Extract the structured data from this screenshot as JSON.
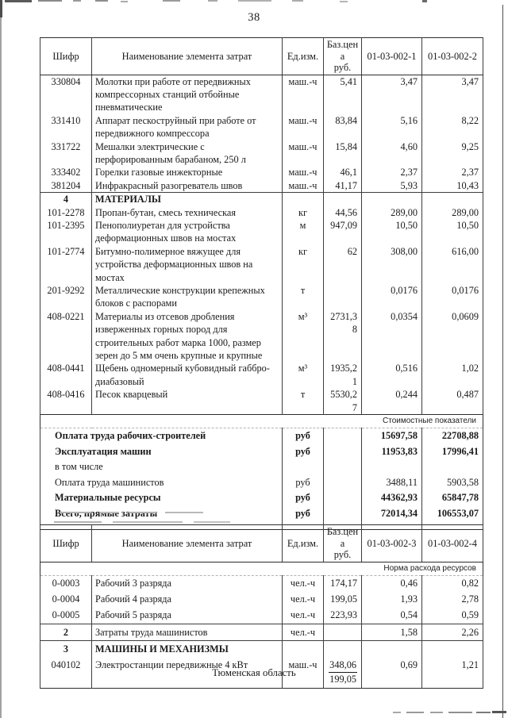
{
  "page": {
    "number": "38",
    "footer": "Тюменская область"
  },
  "labels": {
    "cost": "Стоимостные показатели",
    "norm": "Норма расхода ресурсов"
  },
  "table1": {
    "headers": {
      "code": "Шифр",
      "name": "Наименование элемента затрат",
      "unit": "Ед.изм.",
      "base_line1": "Баз.цена",
      "base_line2": "руб.",
      "col1": "01-03-002-1",
      "col2": "01-03-002-2"
    },
    "rows": [
      {
        "code": "330804",
        "name": "Молотки при работе от передвижных компрессорных станций отбойные пневматические",
        "unit": "маш.-ч",
        "base": "5,41",
        "v1": "3,47",
        "v2": "3,47"
      },
      {
        "code": "331410",
        "name": "Аппарат пескоструйный при работе от передвижного компрессора",
        "unit": "маш.-ч",
        "base": "83,84",
        "v1": "5,16",
        "v2": "8,22"
      },
      {
        "code": "331722",
        "name": "Мешалки электрические с перфорированным барабаном, 250 л",
        "unit": "маш.-ч",
        "base": "15,84",
        "v1": "4,60",
        "v2": "9,25"
      },
      {
        "code": "333402",
        "name": "Горелки газовые инжекторные",
        "unit": "маш.-ч",
        "base": "46,1",
        "v1": "2,37",
        "v2": "2,37"
      },
      {
        "code": "381204",
        "name": "Инфракрасный разогреватель швов",
        "unit": "маш.-ч",
        "base": "41,17",
        "v1": "5,93",
        "v2": "10,43"
      },
      {
        "code": "4",
        "name": "МАТЕРИАЛЫ",
        "unit": "",
        "base": "",
        "v1": "",
        "v2": "",
        "section": true
      },
      {
        "code": "101-2278",
        "name": "Пропан-бутан, смесь техническая",
        "unit": "кг",
        "base": "44,56",
        "v1": "289,00",
        "v2": "289,00"
      },
      {
        "code": "101-2395",
        "name": "Пенополиуретан для устройства деформационных швов на мостах",
        "unit": "м",
        "base": "947,09",
        "v1": "10,50",
        "v2": "10,50"
      },
      {
        "code": "101-2774",
        "name": "Битумно-полимерное вяжущее для устройства деформационных швов на мостах",
        "unit": "кг",
        "base": "62",
        "v1": "308,00",
        "v2": "616,00"
      },
      {
        "code": "201-9292",
        "name": "Металлические конструкции крепежных блоков с распорами",
        "unit": "т",
        "base": "",
        "v1": "0,0176",
        "v2": "0,0176"
      },
      {
        "code": "408-0221",
        "name": "Материалы из отсевов дробления изверженных горных пород для строительных работ марка 1000, размер зерен до 5 мм очень крупные и крупные",
        "unit": "м³",
        "base": "2731,38",
        "v1": "0,0354",
        "v2": "0,0609"
      },
      {
        "code": "408-0441",
        "name": "Щебень одномерный кубовидный габбро-диабазовый",
        "unit": "м³",
        "base": "1935,21",
        "v1": "0,516",
        "v2": "1,02"
      },
      {
        "code": "408-0416",
        "name": "Песок кварцевый",
        "unit": "т",
        "base": "5530,27",
        "v1": "0,244",
        "v2": "0,487"
      }
    ],
    "cost_rows": [
      {
        "name": "Оплата труда рабочих-строителей",
        "unit": "руб",
        "v1": "15697,58",
        "v2": "22708,88",
        "bold": true
      },
      {
        "name": "Эксплуатация машин",
        "unit": "руб",
        "v1": "11953,83",
        "v2": "17996,41",
        "bold": true
      },
      {
        "name": "в том числе",
        "unit": "",
        "v1": "",
        "v2": "",
        "bold": false
      },
      {
        "name": "Оплата труда машинистов",
        "unit": "руб",
        "v1": "3488,11",
        "v2": "5903,58",
        "bold": false
      },
      {
        "name": "Материальные ресурсы",
        "unit": "руб",
        "v1": "44362,93",
        "v2": "65847,78",
        "bold": true
      },
      {
        "name": "Всего, прямые затраты",
        "unit": "руб",
        "v1": "72014,34",
        "v2": "106553,07",
        "bold": true
      }
    ]
  },
  "table2": {
    "headers": {
      "code": "Шифр",
      "name": "Наименование элемента затрат",
      "unit": "Ед.изм.",
      "base_line1": "Баз.цена",
      "base_line2": "руб.",
      "col1": "01-03-002-3",
      "col2": "01-03-002-4"
    },
    "rows": [
      {
        "code": "0-0003",
        "name": "Рабочий 3 разряда",
        "unit": "чел.-ч",
        "base": "174,17",
        "v1": "0,46",
        "v2": "0,82"
      },
      {
        "code": "0-0004",
        "name": "Рабочий 4 разряда",
        "unit": "чел.-ч",
        "base": "199,05",
        "v1": "1,93",
        "v2": "2,78"
      },
      {
        "code": "0-0005",
        "name": "Рабочий 5 разряда",
        "unit": "чел.-ч",
        "base": "223,93",
        "v1": "0,54",
        "v2": "0,59"
      },
      {
        "code": "2",
        "name": "Затраты труда машинистов",
        "unit": "чел.-ч",
        "base": "",
        "v1": "1,58",
        "v2": "2,26",
        "rule_top": true,
        "code_bold": true
      },
      {
        "code": "3",
        "name": "МАШИНЫ И МЕХАНИЗМЫ",
        "unit": "",
        "base": "",
        "v1": "",
        "v2": "",
        "section": true
      },
      {
        "code": "040102",
        "name": "Электростанции передвижные 4 кВт",
        "unit": "маш.-ч",
        "base": {
          "top": "348,06",
          "bottom": "199,05"
        },
        "v1": "0,69",
        "v2": "1,21"
      }
    ]
  }
}
